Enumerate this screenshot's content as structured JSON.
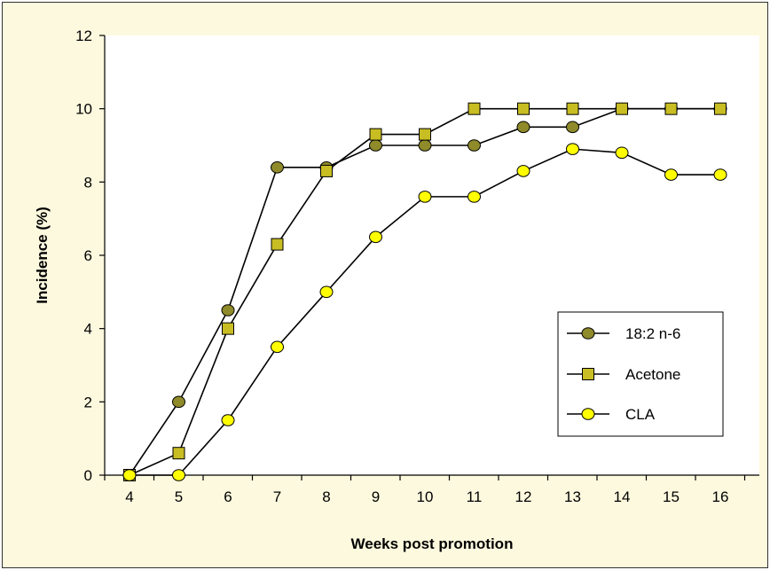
{
  "chart_data": {
    "type": "line",
    "xlabel": "Weeks post promotion",
    "ylabel": "Incidence (%)",
    "categories": [
      4,
      5,
      6,
      7,
      8,
      9,
      10,
      11,
      12,
      13,
      14,
      15,
      16
    ],
    "ylim": [
      0,
      12
    ],
    "yticks": [
      0,
      2,
      4,
      6,
      8,
      10,
      12
    ],
    "grid": false,
    "legend_position": "lower-right",
    "plot_background": "#ffffff",
    "figure_background": "#fdf9de",
    "series": [
      {
        "name": "18:2 n-6",
        "marker": "circle",
        "color": "#8f8a2a",
        "values": [
          0,
          2,
          4.5,
          8.4,
          8.4,
          9,
          9,
          9,
          9.5,
          9.5,
          10,
          10,
          10
        ]
      },
      {
        "name": "Acetone",
        "marker": "square",
        "color": "#c8bd22",
        "values": [
          0,
          0.6,
          4,
          6.3,
          8.3,
          9.3,
          9.3,
          10,
          10,
          10,
          10,
          10,
          10
        ]
      },
      {
        "name": "CLA",
        "marker": "circle",
        "color": "#ffff00",
        "values": [
          0,
          0,
          1.5,
          3.5,
          5,
          6.5,
          7.6,
          7.6,
          8.3,
          8.9,
          8.8,
          8.2,
          8.2
        ]
      }
    ]
  }
}
